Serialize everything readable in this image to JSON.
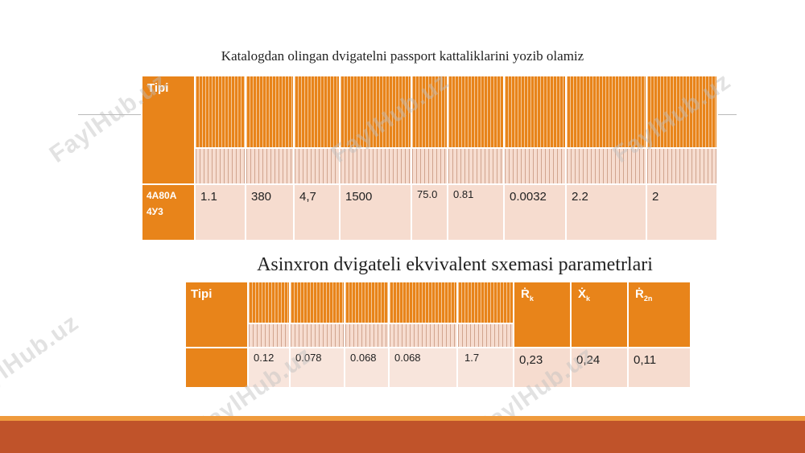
{
  "title_top": "Katalogdan olingan dvigatelni passport kattaliklarini yozib olamiz",
  "title_second": "Asinxron dvigateli ekvivalent sxemasi parametrlari",
  "table1": {
    "header_label": "Tipi",
    "motor_type": "4A80A 4У3",
    "values": [
      "1.1",
      "380",
      "4,7",
      "1500",
      "75.0",
      "0.81",
      "0.0032",
      "2.2",
      "2"
    ]
  },
  "table2": {
    "header_label": "Tipi",
    "symbols": [
      {
        "base": "Ṙ",
        "sub": "k"
      },
      {
        "base": "Ẋ",
        "sub": "k"
      },
      {
        "base": "Ṙ",
        "sub": "2n"
      }
    ],
    "values": [
      "0.12",
      "0.078",
      "0.068",
      "0.068",
      "1.7"
    ],
    "values_right": [
      "0,23",
      "0,24",
      "0,11"
    ]
  },
  "watermark": "FaylHub.uz",
  "colors": {
    "accent": "#e8841a",
    "cell": "#f6dccf",
    "bar": "#c0532a"
  }
}
